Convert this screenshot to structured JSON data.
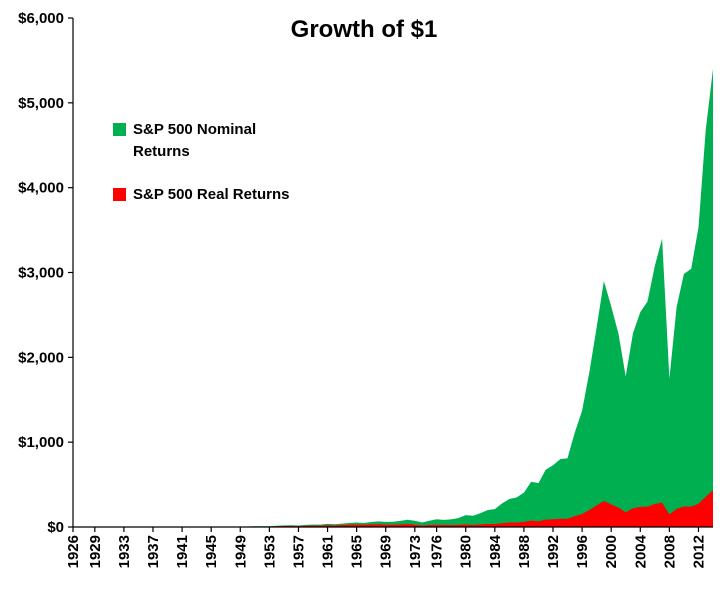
{
  "chart_data": {
    "type": "area",
    "title": "Growth of $1",
    "grid": false,
    "legend_position": "inside-top-left",
    "ylim": [
      0,
      6000
    ],
    "y_tick_values": [
      0,
      1000,
      2000,
      3000,
      4000,
      5000,
      6000
    ],
    "y_tick_labels": [
      "$0",
      "$1,000",
      "$2,000",
      "$3,000",
      "$4,000",
      "$5,000",
      "$6,000"
    ],
    "x_start": 1926,
    "x_end": 2014,
    "x_tick_years": [
      1926,
      1929,
      1933,
      1937,
      1941,
      1945,
      1949,
      1953,
      1957,
      1961,
      1965,
      1969,
      1973,
      1976,
      1980,
      1984,
      1988,
      1992,
      1996,
      2000,
      2004,
      2008,
      2012
    ],
    "x_tick_labels": [
      "1926",
      "1929",
      "1933",
      "1937",
      "1941",
      "1945",
      "1949",
      "1953",
      "1957",
      "1961",
      "1965",
      "1969",
      "1973",
      "1976",
      "1980",
      "1984",
      "1988",
      "1992",
      "1996",
      "2000",
      "2004",
      "2008",
      "2012"
    ],
    "years": [
      1926,
      1927,
      1928,
      1929,
      1930,
      1931,
      1932,
      1933,
      1934,
      1935,
      1936,
      1937,
      1938,
      1939,
      1940,
      1941,
      1942,
      1943,
      1944,
      1945,
      1946,
      1947,
      1948,
      1949,
      1950,
      1951,
      1952,
      1953,
      1954,
      1955,
      1956,
      1957,
      1958,
      1959,
      1960,
      1961,
      1962,
      1963,
      1964,
      1965,
      1966,
      1967,
      1968,
      1969,
      1970,
      1971,
      1972,
      1973,
      1974,
      1975,
      1976,
      1977,
      1978,
      1979,
      1980,
      1981,
      1982,
      1983,
      1984,
      1985,
      1986,
      1987,
      1988,
      1989,
      1990,
      1991,
      1992,
      1993,
      1994,
      1995,
      1996,
      1997,
      1998,
      1999,
      2000,
      2001,
      2002,
      2003,
      2004,
      2005,
      2006,
      2007,
      2008,
      2009,
      2010,
      2011,
      2012,
      2013,
      2014
    ],
    "series": [
      {
        "id": "nominal",
        "name": "S&P 500 Nominal Returns",
        "legend_lines": [
          "S&P 500 Nominal",
          "Returns"
        ],
        "color": "#00B050",
        "values": [
          1.12,
          1.54,
          2.2,
          2.02,
          1.52,
          0.86,
          0.79,
          1.21,
          1.2,
          1.77,
          2.37,
          1.54,
          2.02,
          2.01,
          1.81,
          1.6,
          1.93,
          2.43,
          2.91,
          3.97,
          3.65,
          3.85,
          4.06,
          4.83,
          6.36,
          7.89,
          9.34,
          9.24,
          14.11,
          18.56,
          19.78,
          17.65,
          25.3,
          28.32,
          28.46,
          36.11,
          32.95,
          40.47,
          47.14,
          53.01,
          47.67,
          59.1,
          65.64,
          60.06,
          62.47,
          71.41,
          84.96,
          72.5,
          53.31,
          73.14,
          90.58,
          84.08,
          89.59,
          106.11,
          140.51,
          133.62,
          162.22,
          198.75,
          211.2,
          278.33,
          330.27,
          347.97,
          405.52,
          534.46,
          517.5,
          675.59,
          727.38,
          800.08,
          810.54,
          1113.92,
          1370.95,
          1828.33,
          2350.89,
          2900,
          2600,
          2279,
          1775,
          2286,
          2533,
          2658,
          3077,
          3400,
          1750,
          2592,
          2982,
          3045,
          3532,
          4677,
          5400
        ]
      },
      {
        "id": "real",
        "name": "S&P 500 Real Returns",
        "legend_lines": [
          "S&P 500 Real Returns"
        ],
        "color": "#FF0000",
        "values": [
          1.13,
          1.59,
          2.29,
          2.1,
          1.69,
          1.05,
          1.07,
          1.64,
          1.58,
          2.27,
          3.0,
          1.9,
          2.56,
          2.54,
          2.26,
          1.84,
          2.03,
          2.48,
          2.91,
          3.89,
          3.02,
          2.92,
          3.01,
          3.63,
          4.51,
          5.3,
          6.23,
          6.12,
          9.41,
          12.29,
          12.76,
          11.03,
          15.52,
          17.16,
          16.94,
          21.37,
          19.27,
          23.26,
          26.78,
          29.61,
          25.77,
          30.94,
          32.82,
          28.33,
          27.89,
          30.91,
          35.55,
          27.88,
          18.26,
          23.44,
          27.7,
          24.09,
          23.51,
          24.62,
          28.97,
          25.31,
          29.55,
          34.87,
          35.68,
          45.26,
          53.1,
          53.62,
          59.81,
          75.38,
          68.73,
          87.06,
          91.15,
          97.57,
          96.26,
          128.93,
          153.69,
          201.58,
          254.98,
          306,
          266,
          229,
          174,
          220,
          237,
          240,
          271,
          288,
          148,
          213,
          242,
          240,
          273,
          357,
          435
        ]
      }
    ],
    "axis_color": "#000000"
  }
}
